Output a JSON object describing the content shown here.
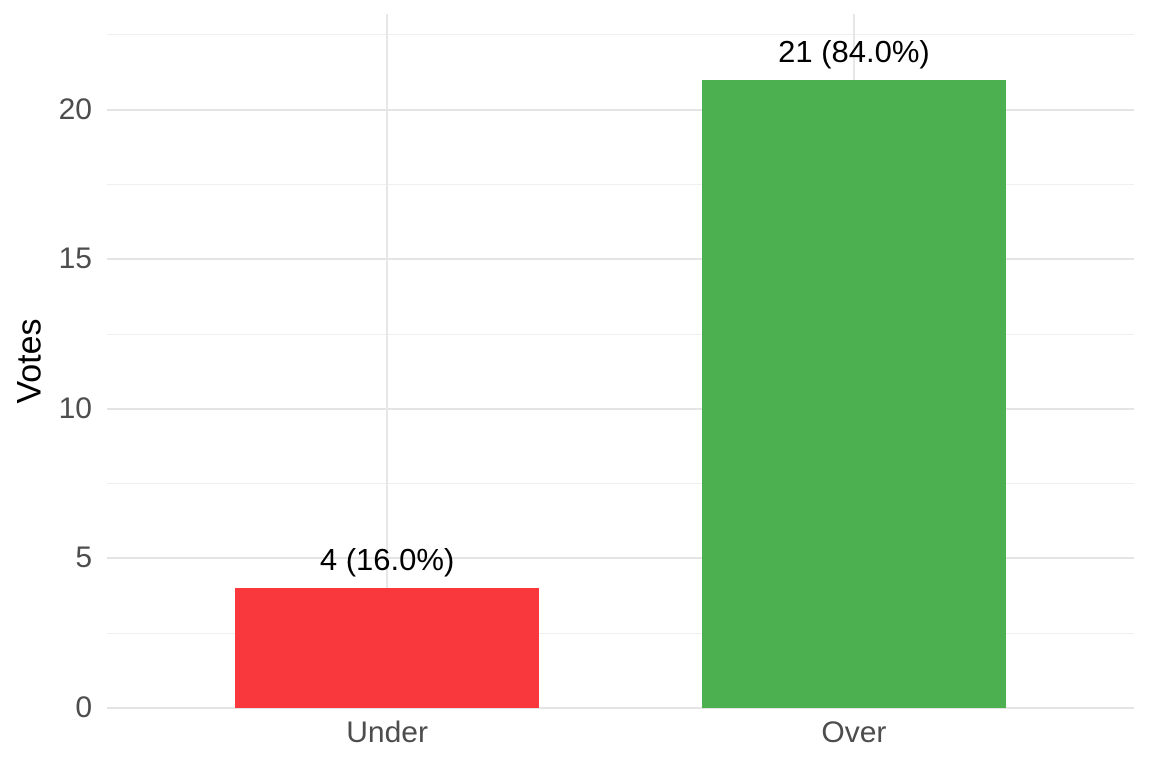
{
  "chart_data": {
    "type": "bar",
    "title": "",
    "categories": [
      "Under",
      "Over"
    ],
    "values": [
      4,
      21
    ],
    "bar_labels": [
      "4 (16.0%)",
      "21 (84.0%)"
    ],
    "bar_colors": [
      "#f8383d",
      "#4caf50"
    ],
    "xlabel": "",
    "ylabel": "Votes",
    "ylim": [
      0,
      23.2
    ],
    "yticks": [
      0,
      5,
      10,
      15,
      20
    ],
    "yticks_minor": [
      2.5,
      7.5,
      12.5,
      17.5,
      22.5
    ],
    "grid": "horizontal major+minor, vertical major at category centers",
    "legend_position": "none",
    "colors": {
      "background": "#ffffff",
      "grid_major": "#e4e4e4",
      "grid_minor": "#efefef",
      "axis_text": "#4d4d4d",
      "label_text": "#000000",
      "bar_under": "#f8383d",
      "bar_over": "#4caf50"
    }
  }
}
